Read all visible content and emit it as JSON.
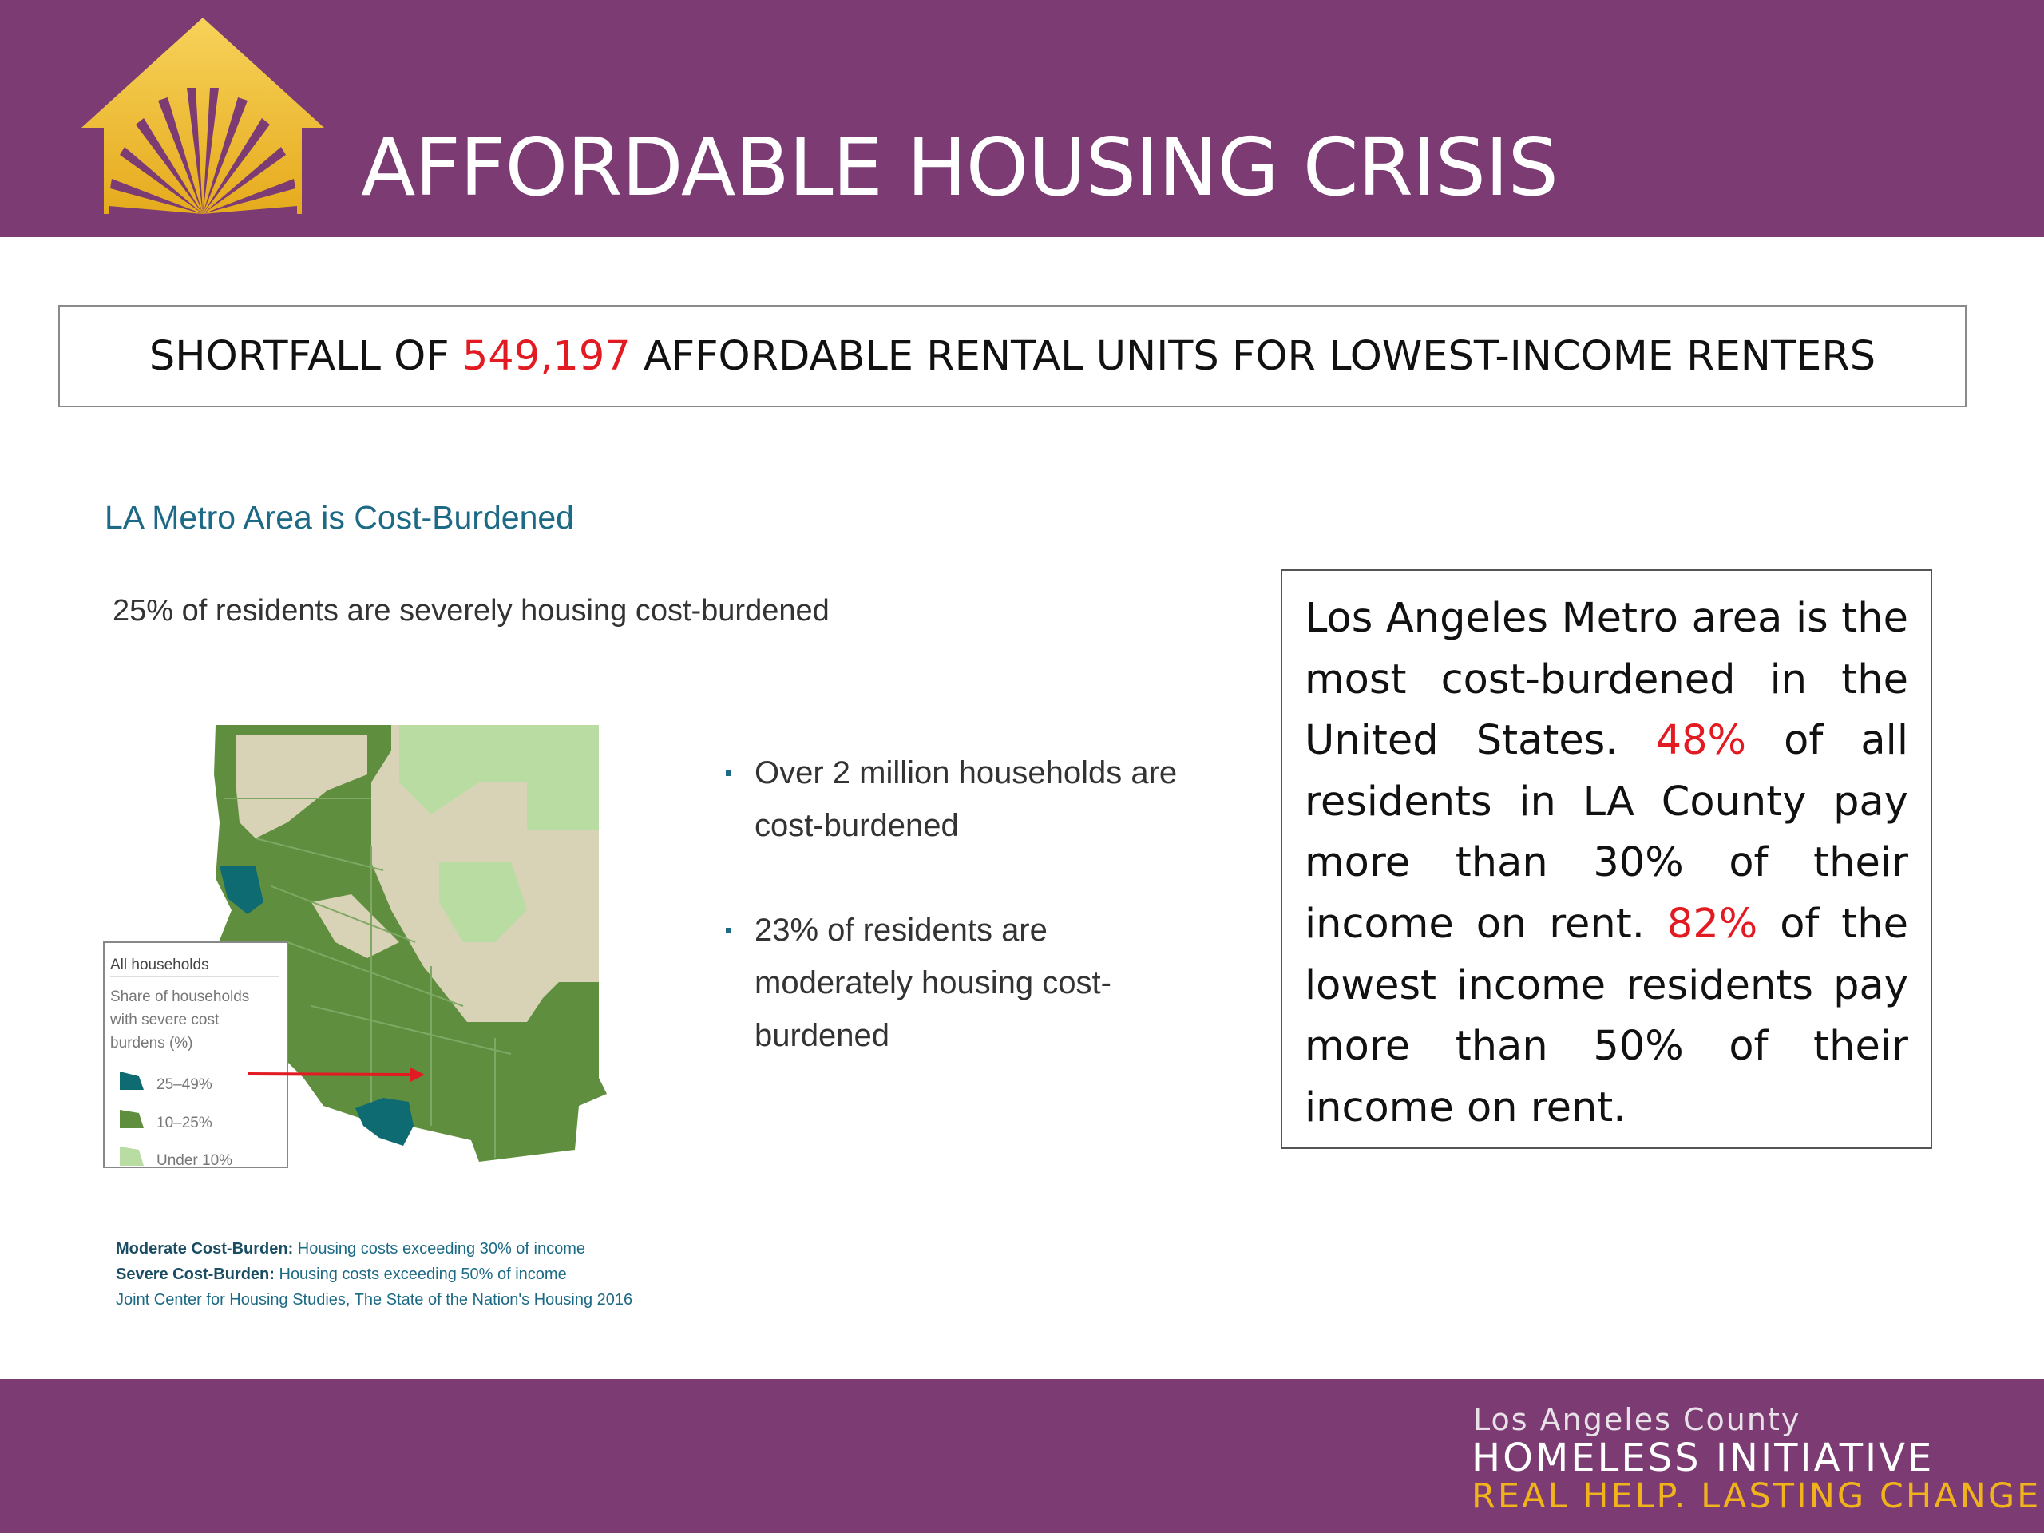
{
  "header": {
    "title": "AFFORDABLE HOUSING CRISIS"
  },
  "shortfall": {
    "prefix": "SHORTFALL OF ",
    "number": "549,197",
    "suffix": " AFFORDABLE RENTAL UNITS FOR LOWEST-INCOME RENTERS"
  },
  "panel": {
    "title": "LA Metro Area is Cost-Burdened",
    "subtitle": "25% of residents are severely housing cost-burdened",
    "bullets": [
      "Over 2 million households are cost-burdened",
      "23% of residents are moderately housing cost-burdened"
    ],
    "legend": {
      "title": "All households",
      "caption_lines": [
        "Share of households",
        "with severe cost",
        "burdens (%)"
      ],
      "items": [
        {
          "label": "25–49%",
          "color": "#0e6b72"
        },
        {
          "label": "10–25%",
          "color": "#5f8f3e"
        },
        {
          "label": "Under 10%",
          "color": "#b9dca2"
        }
      ]
    },
    "footnotes": {
      "moderate_label": "Moderate Cost-Burden:",
      "moderate_text": " Housing costs exceeding 30% of income",
      "severe_label": "Severe Cost-Burden:",
      "severe_text": " Housing costs exceeding 50% of income",
      "source": "Joint Center for Housing Studies, The State of the Nation's Housing 2016"
    }
  },
  "infobox": {
    "part1": "Los Angeles Metro area is the most cost-burdened in the United States. ",
    "stat1": "48%",
    "part2": " of all residents in LA County pay more than 30% of their income on rent. ",
    "stat2": "82%",
    "part3": " of the lowest income residents pay more than 50% of their income on rent."
  },
  "footer": {
    "line1": "Los Angeles County",
    "line2": "HOMELESS INITIATIVE",
    "line3": "REAL HELP. LASTING CHANGE."
  },
  "colors": {
    "brand_purple": "#7c3b73",
    "accent_red": "#e21b22",
    "gold": "#f1b31c",
    "teal": "#1c6a85"
  }
}
